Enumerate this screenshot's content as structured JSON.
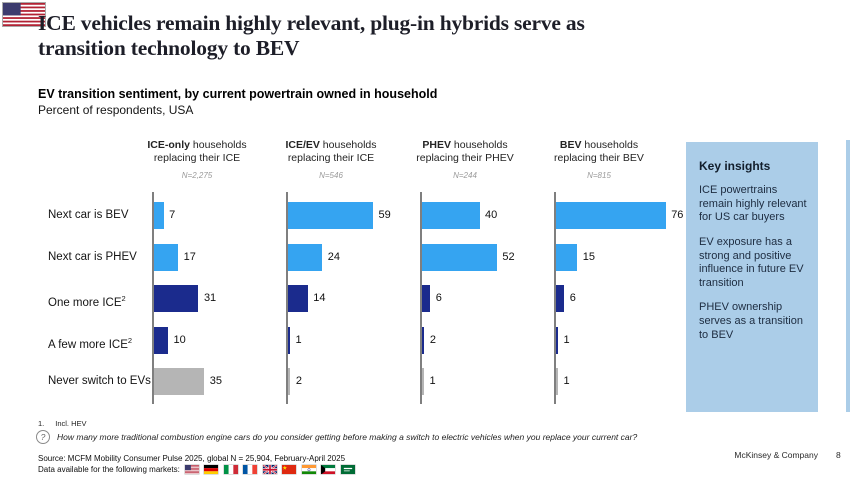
{
  "slide": {
    "title": "ICE vehicles remain highly relevant, plug-in hybrids serve as\ntransition technology to BEV",
    "subtitle": "EV transition sentiment, by current powertrain owned in household",
    "subtitle_note": "Percent of respondents, USA",
    "brand": "McKinsey & Company",
    "page_number": "8",
    "header_flag": "united-states"
  },
  "key_insights": {
    "title": "Key insights",
    "bg_color": "#ABCDE8",
    "items": [
      "ICE powertrains remain highly relevant for US car buyers",
      "EV exposure has a strong and positive influence in future EV transition",
      "PHEV ownership serves as a transition to BEV"
    ]
  },
  "footer": {
    "footnote_number": "1.",
    "footnote_text": "Incl. HEV",
    "question_icon": "question-mark-circle-icon",
    "question": "How many more traditional combustion engine cars do you consider getting before making a switch to electric vehicles when you replace your current car?",
    "source": "Source: MCFM Mobility Consumer Pulse 2025, global N = 25,904, February-April 2025",
    "markets_label": "Data available for the following markets:",
    "market_flags": [
      "united-states",
      "germany",
      "italy",
      "france",
      "united-kingdom",
      "china",
      "india",
      "kuwait",
      "saudi-arabia"
    ]
  },
  "chart_data": {
    "type": "bar",
    "orientation": "horizontal",
    "unit": "percent of respondents",
    "xlim": [
      0,
      80
    ],
    "grid": false,
    "categories": [
      {
        "label": "Next car is BEV",
        "sup": ""
      },
      {
        "label": "Next car is PHEV",
        "sup": ""
      },
      {
        "label": "One more ICE",
        "sup": "2"
      },
      {
        "label": "A few more ICE",
        "sup": "2"
      },
      {
        "label": "Never switch to EVs",
        "sup": ""
      }
    ],
    "category_colors": [
      "#35A4F1",
      "#35A4F1",
      "#1B2B8D",
      "#1B2B8D",
      "#B5B5B5"
    ],
    "groups": [
      {
        "title_bold": "ICE-only",
        "title_rest": " households",
        "title_line2": "replacing their ICE",
        "n_label": "N=2,275",
        "values": [
          7,
          17,
          31,
          10,
          35
        ]
      },
      {
        "title_bold": "ICE/EV",
        "title_rest": " households",
        "title_line2": "replacing their ICE",
        "n_label": "N=546",
        "values": [
          59,
          24,
          14,
          1,
          2
        ]
      },
      {
        "title_bold": "PHEV",
        "title_rest": " households",
        "title_line2": "replacing their PHEV",
        "n_label": "N=244",
        "values": [
          40,
          52,
          6,
          2,
          1
        ]
      },
      {
        "title_bold": "BEV",
        "title_rest": " households",
        "title_line2": "replacing their BEV",
        "n_label": "N=815",
        "values": [
          76,
          15,
          6,
          1,
          1
        ]
      }
    ]
  }
}
